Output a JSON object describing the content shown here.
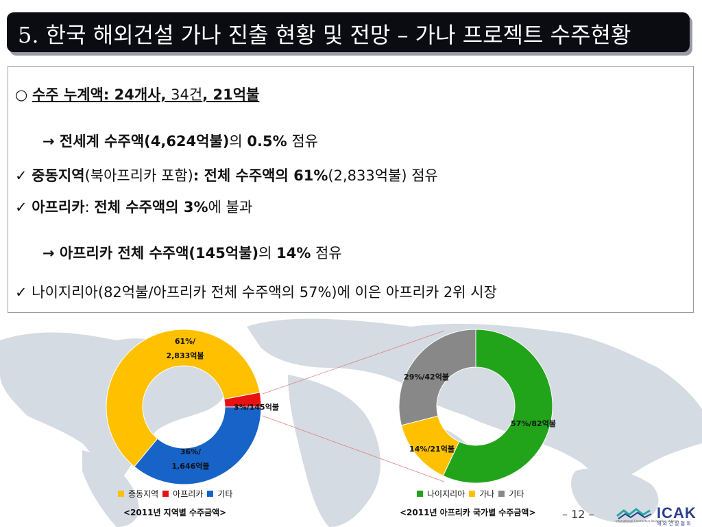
{
  "title": "5. 한국 해외건설 가나 진출 현황 및 전망 – 가나 프로젝트 수주현황",
  "lines": {
    "l1_prefix": "○ ",
    "l1_a": "수주 누계액: 24개사,",
    "l1_b": " 34건",
    "l1_c": ", 21억불",
    "l2_a": "→ 전세계 수주액(4,624억불)",
    "l2_b": "의 ",
    "l2_c": "0.5%",
    "l2_d": " 점유",
    "l3_check": "✓ ",
    "l3_a": "중동지역",
    "l3_b": "(북아프리카 포함)",
    "l3_c": ": 전체 수주액의 61%",
    "l3_d": "(2,833억불) 점유",
    "l4_check": "✓ ",
    "l4_a": "아프리카",
    "l4_b": ": ",
    "l4_c": "전체 수주액의 3%",
    "l4_d": "에 불과",
    "l5_a": "→ 아프리카 전체 수주액(145억불)",
    "l5_b": "의 ",
    "l5_c": "14%",
    "l5_d": " 점유",
    "l6_check": "✓ ",
    "l6_a": "나이지리아(82억불/아프리카 전체 수주액의 57%)에 이은 아프리카 2위 시장"
  },
  "chart_data": [
    {
      "type": "pie",
      "title": "<2011년 지역별 수주금액>",
      "categories": [
        "중동지역",
        "아프리카",
        "기타"
      ],
      "values": [
        61,
        3,
        36
      ],
      "labels": [
        "61%/\n2,833억불",
        "3%/145억불",
        "36%/\n1,646억불"
      ],
      "colors": [
        "#ffc000",
        "#e81010",
        "#1763c8"
      ]
    },
    {
      "type": "pie",
      "title": "<2011년 아프리카 국가별 수주금액>",
      "categories": [
        "나이지리아",
        "가나",
        "기타"
      ],
      "values": [
        57,
        14,
        29
      ],
      "labels": [
        "57%/82억불",
        "14%/21억불",
        "29%/42억불"
      ],
      "colors": [
        "#22a41a",
        "#ffc000",
        "#888888"
      ]
    }
  ],
  "legend1": [
    "중동지역",
    "아프리카",
    "기타"
  ],
  "legend2": [
    "나이지리아",
    "가나",
    "기타"
  ],
  "page_number": "– 12 –",
  "logo": {
    "name": "ICAK",
    "sub": "해 외 건 설 협 회",
    "small": "International Contractors Association of Korea"
  }
}
